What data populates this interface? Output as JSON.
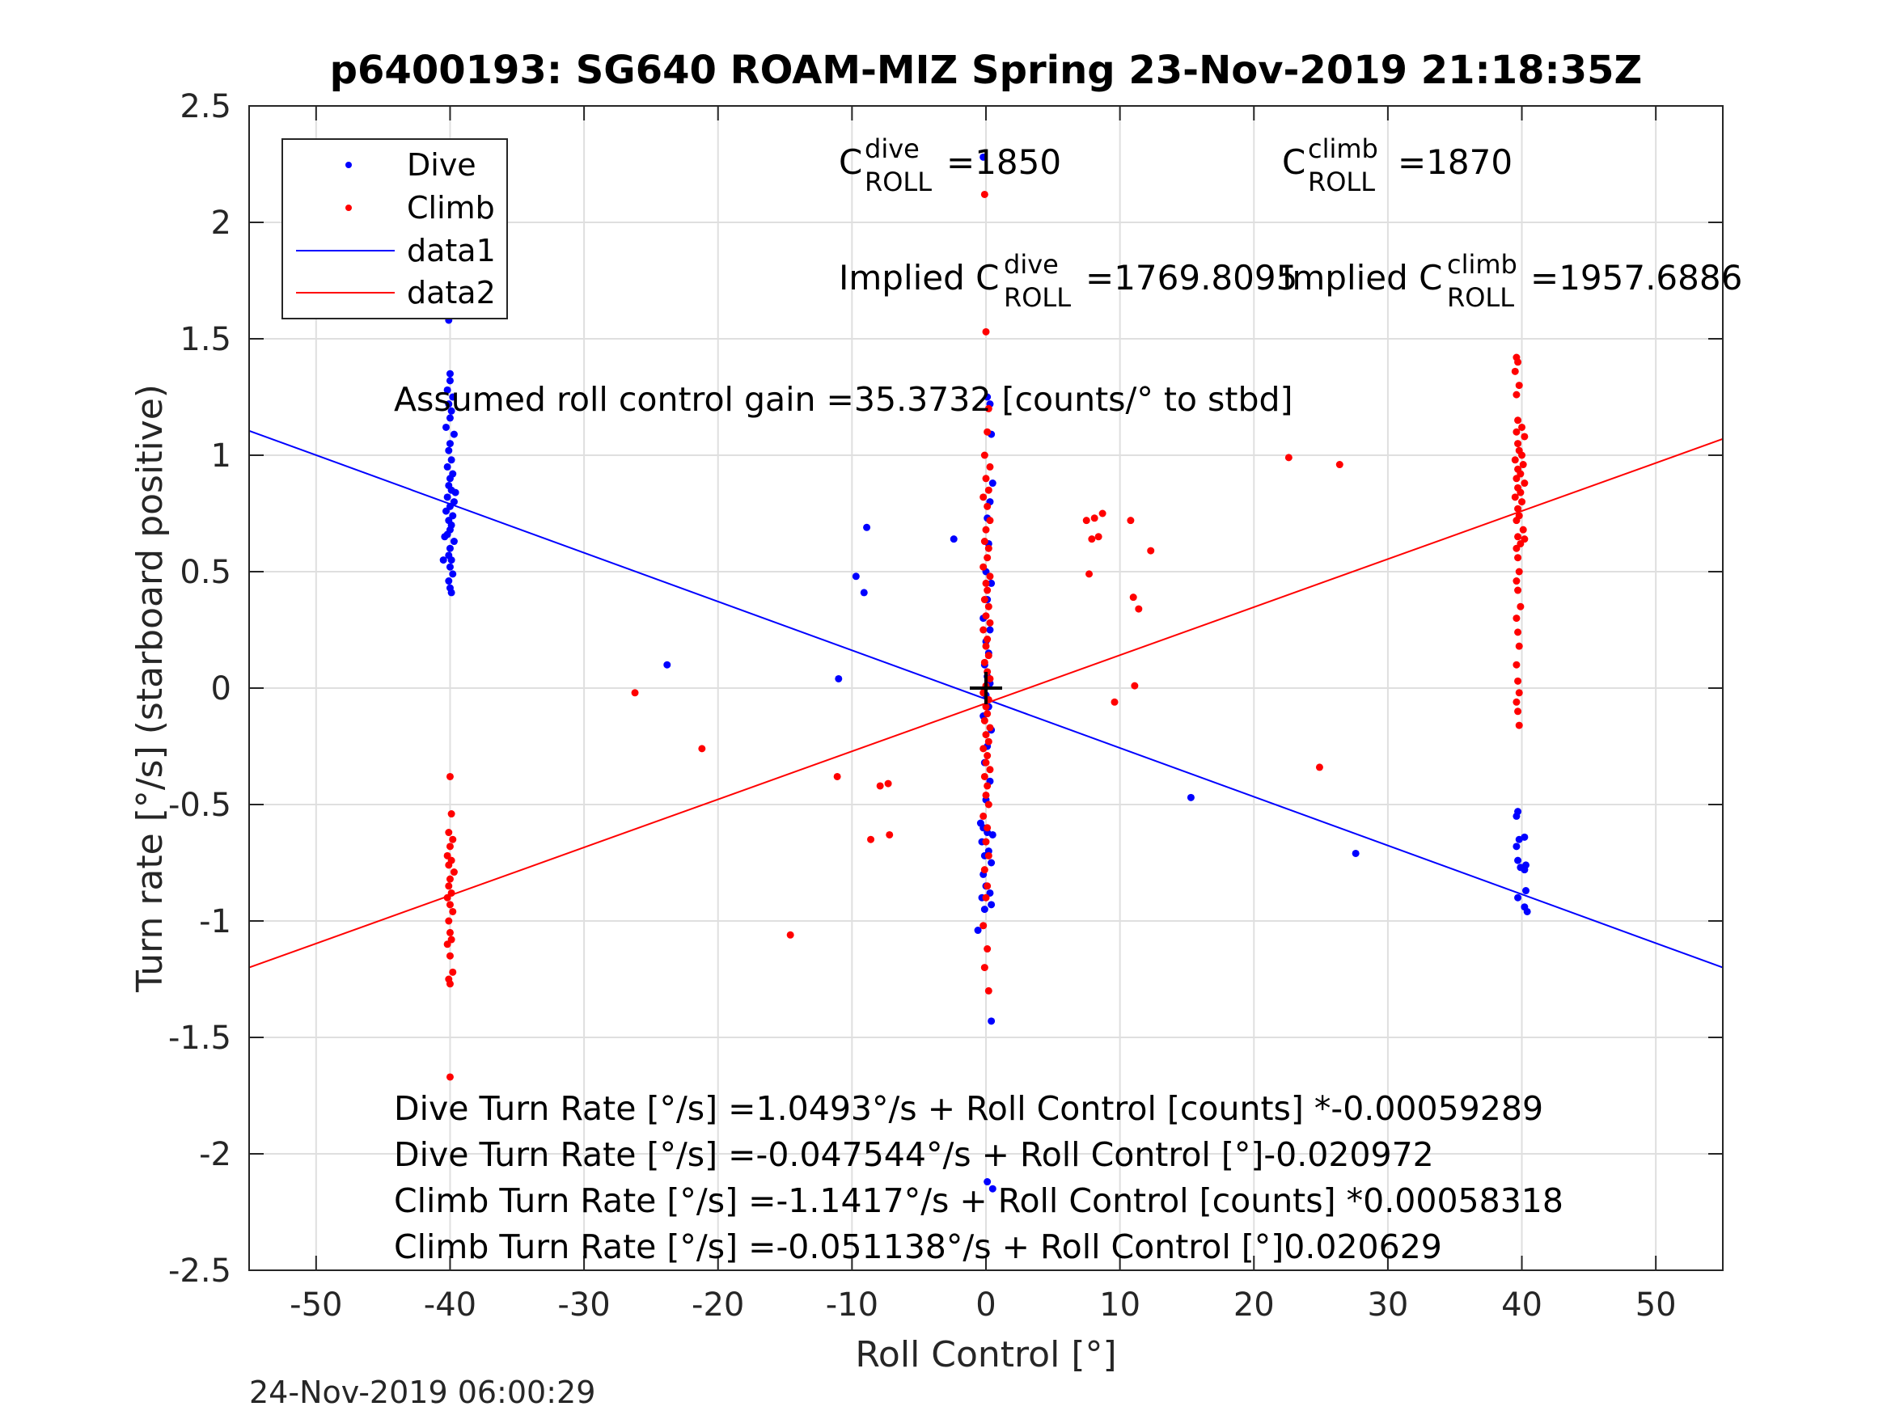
{
  "footer_timestamp": "24-Nov-2019 06:00:29",
  "colors": {
    "dive": "#0000ff",
    "climb": "#ff0000",
    "axis": "#262626",
    "grid": "#dfdfdf"
  },
  "chart_data": {
    "type": "scatter",
    "title": "p6400193: SG640 ROAM-MIZ Spring 23-Nov-2019 21:18:35Z",
    "xlabel": "Roll Control [°]",
    "ylabel": "Turn rate [°/s] (starboard positive)",
    "xlim": [
      -55,
      55
    ],
    "ylim": [
      -2.5,
      2.5
    ],
    "xticks": [
      -50,
      -40,
      -30,
      -20,
      -10,
      0,
      10,
      20,
      30,
      40,
      50
    ],
    "xtick_labels": [
      "-50",
      "-40",
      "-30",
      "-20",
      "-10",
      "0",
      "10",
      "20",
      "30",
      "40",
      "50"
    ],
    "yticks": [
      2.5,
      2,
      1.5,
      1,
      0.5,
      0,
      -0.5,
      -1,
      -1.5,
      -2,
      -2.5
    ],
    "ytick_labels": [
      "2.5",
      "2",
      "1.5",
      "1",
      "0.5",
      "0",
      "-0.5",
      "-1",
      "-1.5",
      "-2",
      "-2.5"
    ],
    "grid": true,
    "legend": {
      "position": "top-left",
      "entries": [
        "Dive",
        "Climb",
        "data1",
        "data2"
      ]
    },
    "annotations": {
      "c_dive": {
        "base": "C",
        "sup": "dive",
        "sub": "ROLL",
        "value": "=1850"
      },
      "c_climb": {
        "base": "C",
        "sup": "climb",
        "sub": "ROLL",
        "value": "=1870"
      },
      "implied_dive": {
        "prefix": "Implied C",
        "sup": "dive",
        "sub": "ROLL",
        "value": "=1769.8095"
      },
      "implied_climb": {
        "prefix": "Implied C",
        "sup": "climb",
        "sub": "ROLL",
        "value": "=1957.6886"
      },
      "gain": "Assumed roll control gain =35.3732 [counts/° to stbd]",
      "eq1": "Dive Turn Rate [°/s] =1.0493°/s + Roll Control [counts] *-0.00059289",
      "eq2": "Dive Turn Rate [°/s] =-0.047544°/s + Roll Control [°]-0.020972",
      "eq3": "Climb Turn Rate [°/s] =-1.1417°/s + Roll Control [counts] *0.00058318",
      "eq4": "Climb Turn Rate [°/s] =-0.051138°/s + Roll Control [°]0.020629"
    },
    "center_marker": {
      "x": 0,
      "y": 0
    },
    "series": [
      {
        "name": "Dive",
        "kind": "points",
        "color": "#0000ff",
        "points": [
          [
            -40.1,
            1.58
          ],
          [
            -40.0,
            1.35
          ],
          [
            -40.0,
            1.32
          ],
          [
            -40.2,
            1.28
          ],
          [
            -39.8,
            1.25
          ],
          [
            -40.1,
            1.22
          ],
          [
            -39.9,
            1.19
          ],
          [
            -40.0,
            1.16
          ],
          [
            -40.3,
            1.12
          ],
          [
            -39.7,
            1.09
          ],
          [
            -40.0,
            1.05
          ],
          [
            -40.1,
            1.02
          ],
          [
            -39.9,
            0.98
          ],
          [
            -40.2,
            0.95
          ],
          [
            -39.8,
            0.92
          ],
          [
            -40.0,
            0.9
          ],
          [
            -40.1,
            0.87
          ],
          [
            -39.9,
            0.85
          ],
          [
            -40.2,
            0.82
          ],
          [
            -39.7,
            0.8
          ],
          [
            -40.0,
            0.78
          ],
          [
            -40.3,
            0.76
          ],
          [
            -39.8,
            0.74
          ],
          [
            -40.1,
            0.72
          ],
          [
            -39.9,
            0.7
          ],
          [
            -40.0,
            0.68
          ],
          [
            -40.4,
            0.65
          ],
          [
            -39.7,
            0.63
          ],
          [
            -40.0,
            0.6
          ],
          [
            -40.1,
            0.57
          ],
          [
            -39.9,
            0.55
          ],
          [
            -40.5,
            0.55
          ],
          [
            -40.0,
            0.52
          ],
          [
            -39.8,
            0.49
          ],
          [
            -40.1,
            0.46
          ],
          [
            -40.0,
            0.43
          ],
          [
            -39.9,
            0.41
          ],
          [
            -40.2,
            0.66
          ],
          [
            -39.6,
            0.84
          ],
          [
            -0.2,
            2.28
          ],
          [
            0.1,
            1.25
          ],
          [
            0.3,
            1.22
          ],
          [
            0.4,
            1.09
          ],
          [
            0.5,
            0.88
          ],
          [
            0.3,
            0.8
          ],
          [
            0.1,
            0.73
          ],
          [
            0.2,
            0.62
          ],
          [
            0.0,
            0.5
          ],
          [
            0.4,
            0.45
          ],
          [
            0.1,
            0.38
          ],
          [
            -0.2,
            0.3
          ],
          [
            0.3,
            0.25
          ],
          [
            0.0,
            0.2
          ],
          [
            0.2,
            0.15
          ],
          [
            -0.1,
            0.1
          ],
          [
            0.1,
            0.05
          ],
          [
            0.3,
            0.02
          ],
          [
            0.0,
            -0.03
          ],
          [
            0.2,
            -0.08
          ],
          [
            -0.2,
            -0.12
          ],
          [
            0.4,
            -0.18
          ],
          [
            0.1,
            -0.25
          ],
          [
            -0.1,
            -0.32
          ],
          [
            0.3,
            -0.4
          ],
          [
            0.0,
            -0.48
          ],
          [
            -0.4,
            -0.58
          ],
          [
            -0.2,
            -0.6
          ],
          [
            0.1,
            -0.62
          ],
          [
            0.5,
            -0.63
          ],
          [
            -0.3,
            -0.66
          ],
          [
            0.2,
            -0.7
          ],
          [
            -0.1,
            -0.72
          ],
          [
            0.4,
            -0.75
          ],
          [
            -0.2,
            -0.8
          ],
          [
            0.0,
            -0.85
          ],
          [
            0.3,
            -0.88
          ],
          [
            -0.3,
            -0.9
          ],
          [
            -0.1,
            -0.95
          ],
          [
            0.4,
            -0.93
          ],
          [
            -0.6,
            -1.04
          ],
          [
            0.4,
            -1.43
          ],
          [
            0.1,
            -2.12
          ],
          [
            0.5,
            -2.15
          ],
          [
            -9.7,
            0.48
          ],
          [
            -8.9,
            0.69
          ],
          [
            -9.1,
            0.41
          ],
          [
            -11.0,
            0.04
          ],
          [
            -2.4,
            0.64
          ],
          [
            -23.8,
            0.1
          ],
          [
            15.3,
            -0.47
          ],
          [
            27.6,
            -0.71
          ],
          [
            39.7,
            -0.53
          ],
          [
            39.6,
            -0.55
          ],
          [
            39.8,
            -0.65
          ],
          [
            39.6,
            -0.68
          ],
          [
            40.2,
            -0.64
          ],
          [
            39.7,
            -0.74
          ],
          [
            39.9,
            -0.77
          ],
          [
            40.3,
            -0.76
          ],
          [
            40.2,
            -0.78
          ],
          [
            39.7,
            -0.9
          ],
          [
            40.3,
            -0.87
          ],
          [
            40.2,
            -0.94
          ],
          [
            40.4,
            -0.96
          ]
        ]
      },
      {
        "name": "Climb",
        "kind": "points",
        "color": "#ff0000",
        "points": [
          [
            -40.0,
            -0.38
          ],
          [
            -39.9,
            -0.54
          ],
          [
            -40.1,
            -0.62
          ],
          [
            -39.8,
            -0.65
          ],
          [
            -40.0,
            -0.68
          ],
          [
            -40.2,
            -0.72
          ],
          [
            -39.9,
            -0.74
          ],
          [
            -40.1,
            -0.76
          ],
          [
            -39.7,
            -0.79
          ],
          [
            -40.0,
            -0.82
          ],
          [
            -40.1,
            -0.85
          ],
          [
            -39.9,
            -0.88
          ],
          [
            -40.2,
            -0.9
          ],
          [
            -40.0,
            -0.93
          ],
          [
            -39.8,
            -0.96
          ],
          [
            -40.1,
            -1.0
          ],
          [
            -40.0,
            -1.05
          ],
          [
            -39.9,
            -1.08
          ],
          [
            -40.2,
            -1.1
          ],
          [
            -40.0,
            -1.15
          ],
          [
            -39.8,
            -1.22
          ],
          [
            -40.1,
            -1.25
          ],
          [
            -40.0,
            -1.27
          ],
          [
            -40.0,
            -1.67
          ],
          [
            -0.1,
            2.12
          ],
          [
            0.0,
            1.53
          ],
          [
            0.2,
            1.2
          ],
          [
            0.1,
            1.1
          ],
          [
            -0.1,
            1.0
          ],
          [
            0.3,
            0.95
          ],
          [
            0.0,
            0.9
          ],
          [
            0.2,
            0.85
          ],
          [
            -0.2,
            0.82
          ],
          [
            0.1,
            0.78
          ],
          [
            0.3,
            0.72
          ],
          [
            0.0,
            0.68
          ],
          [
            -0.1,
            0.63
          ],
          [
            0.2,
            0.6
          ],
          [
            0.1,
            0.56
          ],
          [
            -0.2,
            0.52
          ],
          [
            0.3,
            0.48
          ],
          [
            0.0,
            0.45
          ],
          [
            0.1,
            0.42
          ],
          [
            -0.1,
            0.38
          ],
          [
            0.2,
            0.35
          ],
          [
            0.0,
            0.31
          ],
          [
            0.3,
            0.28
          ],
          [
            -0.2,
            0.25
          ],
          [
            0.1,
            0.21
          ],
          [
            0.0,
            0.18
          ],
          [
            0.2,
            0.14
          ],
          [
            -0.1,
            0.11
          ],
          [
            0.1,
            0.07
          ],
          [
            0.3,
            0.04
          ],
          [
            0.0,
            0.01
          ],
          [
            -0.2,
            -0.02
          ],
          [
            0.2,
            -0.05
          ],
          [
            0.0,
            -0.08
          ],
          [
            0.1,
            -0.11
          ],
          [
            -0.1,
            -0.14
          ],
          [
            0.3,
            -0.17
          ],
          [
            0.0,
            -0.2
          ],
          [
            0.2,
            -0.23
          ],
          [
            -0.2,
            -0.26
          ],
          [
            0.1,
            -0.29
          ],
          [
            0.0,
            -0.32
          ],
          [
            0.3,
            -0.35
          ],
          [
            -0.1,
            -0.38
          ],
          [
            0.1,
            -0.42
          ],
          [
            0.0,
            -0.46
          ],
          [
            0.2,
            -0.5
          ],
          [
            -0.2,
            -0.55
          ],
          [
            0.1,
            -0.6
          ],
          [
            0.0,
            -0.66
          ],
          [
            0.2,
            -0.72
          ],
          [
            -0.1,
            -0.78
          ],
          [
            0.1,
            -0.85
          ],
          [
            0.0,
            -0.9
          ],
          [
            -0.2,
            -1.02
          ],
          [
            0.1,
            -1.12
          ],
          [
            -0.1,
            -1.2
          ],
          [
            0.2,
            -1.3
          ],
          [
            -26.2,
            -0.02
          ],
          [
            -21.2,
            -0.26
          ],
          [
            -14.6,
            -1.06
          ],
          [
            -11.1,
            -0.38
          ],
          [
            -8.6,
            -0.65
          ],
          [
            -7.9,
            -0.42
          ],
          [
            -7.3,
            -0.41
          ],
          [
            -7.2,
            -0.63
          ],
          [
            7.5,
            0.72
          ],
          [
            7.7,
            0.49
          ],
          [
            7.9,
            0.64
          ],
          [
            8.1,
            0.73
          ],
          [
            8.4,
            0.65
          ],
          [
            8.7,
            0.75
          ],
          [
            10.8,
            0.72
          ],
          [
            11.0,
            0.39
          ],
          [
            11.4,
            0.34
          ],
          [
            12.3,
            0.59
          ],
          [
            9.6,
            -0.06
          ],
          [
            11.1,
            0.01
          ],
          [
            22.6,
            0.99
          ],
          [
            24.9,
            -0.34
          ],
          [
            26.4,
            0.96
          ],
          [
            39.6,
            1.42
          ],
          [
            39.7,
            1.4
          ],
          [
            39.5,
            1.36
          ],
          [
            39.8,
            1.3
          ],
          [
            39.6,
            1.26
          ],
          [
            39.7,
            1.15
          ],
          [
            40.0,
            1.12
          ],
          [
            39.6,
            1.1
          ],
          [
            40.2,
            1.08
          ],
          [
            39.7,
            1.05
          ],
          [
            39.8,
            1.02
          ],
          [
            40.0,
            1.0
          ],
          [
            39.5,
            0.98
          ],
          [
            40.1,
            0.96
          ],
          [
            39.7,
            0.94
          ],
          [
            39.9,
            0.92
          ],
          [
            39.6,
            0.9
          ],
          [
            40.2,
            0.88
          ],
          [
            39.7,
            0.86
          ],
          [
            39.9,
            0.84
          ],
          [
            39.5,
            0.82
          ],
          [
            40.0,
            0.8
          ],
          [
            39.7,
            0.77
          ],
          [
            39.8,
            0.74
          ],
          [
            39.6,
            0.72
          ],
          [
            40.1,
            0.68
          ],
          [
            39.7,
            0.65
          ],
          [
            39.9,
            0.62
          ],
          [
            39.6,
            0.6
          ],
          [
            40.2,
            0.64
          ],
          [
            39.7,
            0.56
          ],
          [
            39.8,
            0.5
          ],
          [
            39.6,
            0.46
          ],
          [
            39.7,
            0.42
          ],
          [
            39.9,
            0.35
          ],
          [
            39.6,
            0.3
          ],
          [
            39.7,
            0.24
          ],
          [
            39.8,
            0.18
          ],
          [
            39.6,
            0.1
          ],
          [
            39.7,
            0.03
          ],
          [
            39.8,
            -0.02
          ],
          [
            39.6,
            -0.06
          ],
          [
            39.7,
            -0.1
          ],
          [
            39.8,
            -0.16
          ]
        ]
      },
      {
        "name": "data1",
        "kind": "line",
        "color": "#0000ff",
        "x": [
          -55,
          55
        ],
        "y": [
          1.105,
          -1.2
        ]
      },
      {
        "name": "data2",
        "kind": "line",
        "color": "#ff0000",
        "x": [
          -55,
          55
        ],
        "y": [
          -1.2,
          1.07
        ]
      }
    ]
  }
}
